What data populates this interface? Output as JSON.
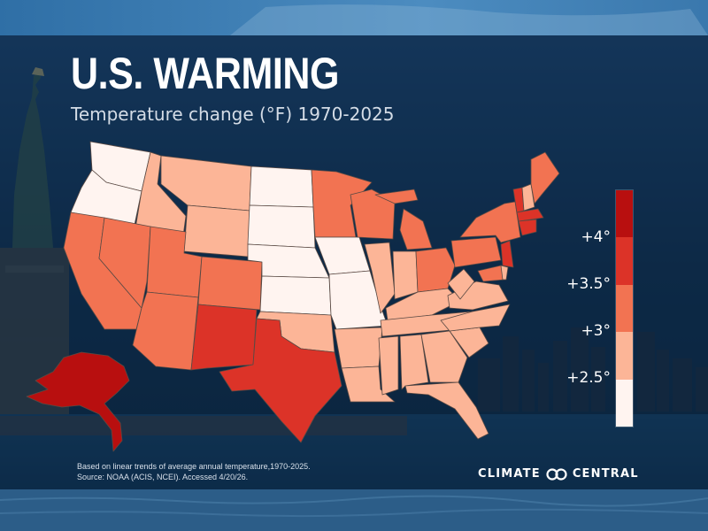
{
  "title": "U.S. WARMING",
  "subtitle": "Temperature change (°F) 1970-2025",
  "legend": {
    "labels": [
      "+4°",
      "+3.5°",
      "+3°",
      "+2.5°"
    ],
    "colors": [
      "#b80f0f",
      "#dc3328",
      "#f27352",
      "#fcb597",
      "#fff4f0"
    ]
  },
  "footer": {
    "line1": "Based on linear trends of average annual temperature,1970-2025.",
    "line2": "Source: NOAA (ACIS, NCEI). Accessed 4/20/26."
  },
  "brand": {
    "left": "CLIMATE",
    "right": "CENTRAL"
  }
}
